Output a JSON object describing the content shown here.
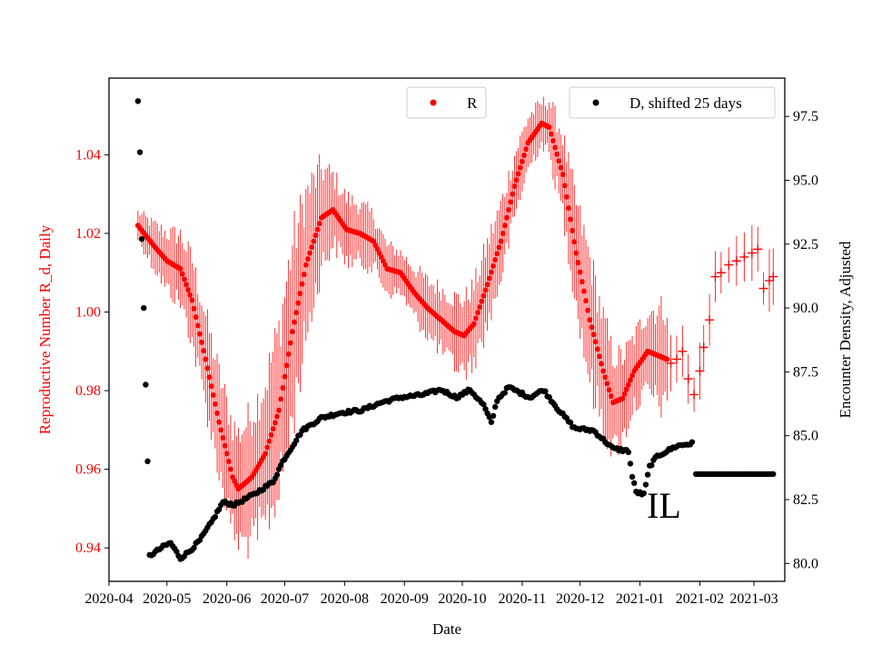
{
  "chart_data": {
    "type": "scatter",
    "title": "",
    "xlabel": "Date",
    "ylabel_left": "Reproductive Number R_d, Daily",
    "ylabel_right": "Encounter Density, Adjusted",
    "annotation": "IL",
    "colors": {
      "R": "#ff0000",
      "D": "#000000",
      "axis": "#000000"
    },
    "x_range": [
      "2020-04-01",
      "2021-03-17"
    ],
    "ylim_left": [
      0.9315,
      1.0595
    ],
    "ylim_right": [
      79.3,
      99.0
    ],
    "x_ticks": [
      "2020-04",
      "2020-05",
      "2020-06",
      "2020-07",
      "2020-08",
      "2020-09",
      "2020-10",
      "2020-11",
      "2020-12",
      "2021-01",
      "2021-02",
      "2021-03"
    ],
    "y_ticks_left": [
      "0.94",
      "0.96",
      "0.98",
      "1.00",
      "1.02",
      "1.04"
    ],
    "y_ticks_right": [
      "80.0",
      "82.5",
      "85.0",
      "87.5",
      "90.0",
      "92.5",
      "95.0",
      "97.5"
    ],
    "legend": {
      "R_label": "R",
      "D_label": "D, shifted 25 days",
      "R_position": "top-center",
      "D_position": "top-right"
    },
    "series_R_dots": {
      "name": "R",
      "start": "2020-04-16",
      "end": "2021-01-15",
      "knots": [
        [
          "2020-04-16",
          1.022
        ],
        [
          "2020-04-24",
          1.017
        ],
        [
          "2020-05-01",
          1.013
        ],
        [
          "2020-05-08",
          1.011
        ],
        [
          "2020-05-14",
          1.003
        ],
        [
          "2020-05-21",
          0.988
        ],
        [
          "2020-05-28",
          0.972
        ],
        [
          "2020-06-04",
          0.958
        ],
        [
          "2020-06-07",
          0.955
        ],
        [
          "2020-06-14",
          0.958
        ],
        [
          "2020-06-21",
          0.964
        ],
        [
          "2020-06-28",
          0.975
        ],
        [
          "2020-07-05",
          0.995
        ],
        [
          "2020-07-12",
          1.012
        ],
        [
          "2020-07-20",
          1.024
        ],
        [
          "2020-07-26",
          1.026
        ],
        [
          "2020-08-02",
          1.021
        ],
        [
          "2020-08-09",
          1.02
        ],
        [
          "2020-08-16",
          1.018
        ],
        [
          "2020-08-23",
          1.011
        ],
        [
          "2020-08-30",
          1.01
        ],
        [
          "2020-09-06",
          1.005
        ],
        [
          "2020-09-13",
          1.001
        ],
        [
          "2020-09-20",
          0.998
        ],
        [
          "2020-09-27",
          0.995
        ],
        [
          "2020-10-02",
          0.994
        ],
        [
          "2020-10-07",
          0.997
        ],
        [
          "2020-10-14",
          1.007
        ],
        [
          "2020-10-21",
          1.018
        ],
        [
          "2020-10-28",
          1.032
        ],
        [
          "2020-11-04",
          1.043
        ],
        [
          "2020-11-11",
          1.048
        ],
        [
          "2020-11-15",
          1.047
        ],
        [
          "2020-11-22",
          1.035
        ],
        [
          "2020-11-29",
          1.015
        ],
        [
          "2020-12-06",
          0.998
        ],
        [
          "2020-12-13",
          0.985
        ],
        [
          "2020-12-18",
          0.977
        ],
        [
          "2020-12-23",
          0.978
        ],
        [
          "2020-12-29",
          0.985
        ],
        [
          "2021-01-05",
          0.99
        ],
        [
          "2021-01-10",
          0.989
        ],
        [
          "2021-01-15",
          0.988
        ]
      ],
      "errorbar_halfwidth_by_date": [
        [
          "2020-04-16",
          0.004
        ],
        [
          "2020-05-15",
          0.012
        ],
        [
          "2020-06-07",
          0.016
        ],
        [
          "2020-07-05",
          0.026
        ],
        [
          "2020-07-26",
          0.01
        ],
        [
          "2020-08-30",
          0.006
        ],
        [
          "2020-09-27",
          0.01
        ],
        [
          "2020-10-15",
          0.012
        ],
        [
          "2020-11-11",
          0.006
        ],
        [
          "2020-12-06",
          0.018
        ],
        [
          "2020-12-29",
          0.01
        ],
        [
          "2021-01-15",
          0.015
        ]
      ]
    },
    "series_R_crosses": {
      "name": "R (estimate, partial)",
      "points": [
        [
          "2021-01-17",
          0.987
        ],
        [
          "2021-01-20",
          0.988
        ],
        [
          "2021-01-23",
          0.99
        ],
        [
          "2021-01-26",
          0.983
        ],
        [
          "2021-01-29",
          0.979
        ],
        [
          "2021-02-01",
          0.985
        ],
        [
          "2021-02-03",
          0.991
        ],
        [
          "2021-02-06",
          0.998
        ],
        [
          "2021-02-09",
          1.009
        ],
        [
          "2021-02-12",
          1.01
        ],
        [
          "2021-02-16",
          1.012
        ],
        [
          "2021-02-20",
          1.013
        ],
        [
          "2021-02-24",
          1.014
        ],
        [
          "2021-02-28",
          1.015
        ],
        [
          "2021-03-03",
          1.016
        ],
        [
          "2021-03-06",
          1.006
        ],
        [
          "2021-03-09",
          1.008
        ],
        [
          "2021-03-11",
          1.009
        ]
      ]
    },
    "series_D": {
      "name": "D, shifted 25 days",
      "early_points": [
        [
          "2020-04-16",
          98.1
        ],
        [
          "2020-04-17",
          96.1
        ],
        [
          "2020-04-18",
          92.7
        ],
        [
          "2020-04-19",
          90.0
        ],
        [
          "2020-04-20",
          87.0
        ],
        [
          "2020-04-21",
          84.0
        ]
      ],
      "knots": [
        [
          "2020-04-22",
          80.3
        ],
        [
          "2020-04-30",
          80.7
        ],
        [
          "2020-05-03",
          80.8
        ],
        [
          "2020-05-08",
          80.2
        ],
        [
          "2020-05-13",
          80.5
        ],
        [
          "2020-05-18",
          80.9
        ],
        [
          "2020-05-24",
          81.6
        ],
        [
          "2020-05-30",
          82.4
        ],
        [
          "2020-06-05",
          82.3
        ],
        [
          "2020-06-15",
          82.7
        ],
        [
          "2020-06-25",
          83.2
        ],
        [
          "2020-06-30",
          84.0
        ],
        [
          "2020-07-10",
          85.2
        ],
        [
          "2020-07-20",
          85.7
        ],
        [
          "2020-07-30",
          85.9
        ],
        [
          "2020-08-10",
          86.0
        ],
        [
          "2020-08-20",
          86.3
        ],
        [
          "2020-08-30",
          86.5
        ],
        [
          "2020-09-10",
          86.6
        ],
        [
          "2020-09-20",
          86.8
        ],
        [
          "2020-09-28",
          86.5
        ],
        [
          "2020-10-05",
          86.8
        ],
        [
          "2020-10-12",
          86.2
        ],
        [
          "2020-10-16",
          85.5
        ],
        [
          "2020-10-19",
          86.4
        ],
        [
          "2020-10-25",
          86.9
        ],
        [
          "2020-11-05",
          86.5
        ],
        [
          "2020-11-12",
          86.8
        ],
        [
          "2020-11-20",
          86.0
        ],
        [
          "2020-11-28",
          85.3
        ],
        [
          "2020-12-08",
          85.2
        ],
        [
          "2020-12-18",
          84.5
        ],
        [
          "2020-12-26",
          84.4
        ],
        [
          "2020-12-28",
          83.4
        ],
        [
          "2020-12-30",
          82.8
        ],
        [
          "2021-01-03",
          82.7
        ],
        [
          "2021-01-06",
          83.8
        ],
        [
          "2021-01-10",
          84.2
        ],
        [
          "2021-01-20",
          84.6
        ],
        [
          "2021-01-28",
          84.7
        ]
      ],
      "flat_value": 83.5,
      "flat_start": "2021-01-30",
      "flat_end": "2021-03-11"
    }
  }
}
